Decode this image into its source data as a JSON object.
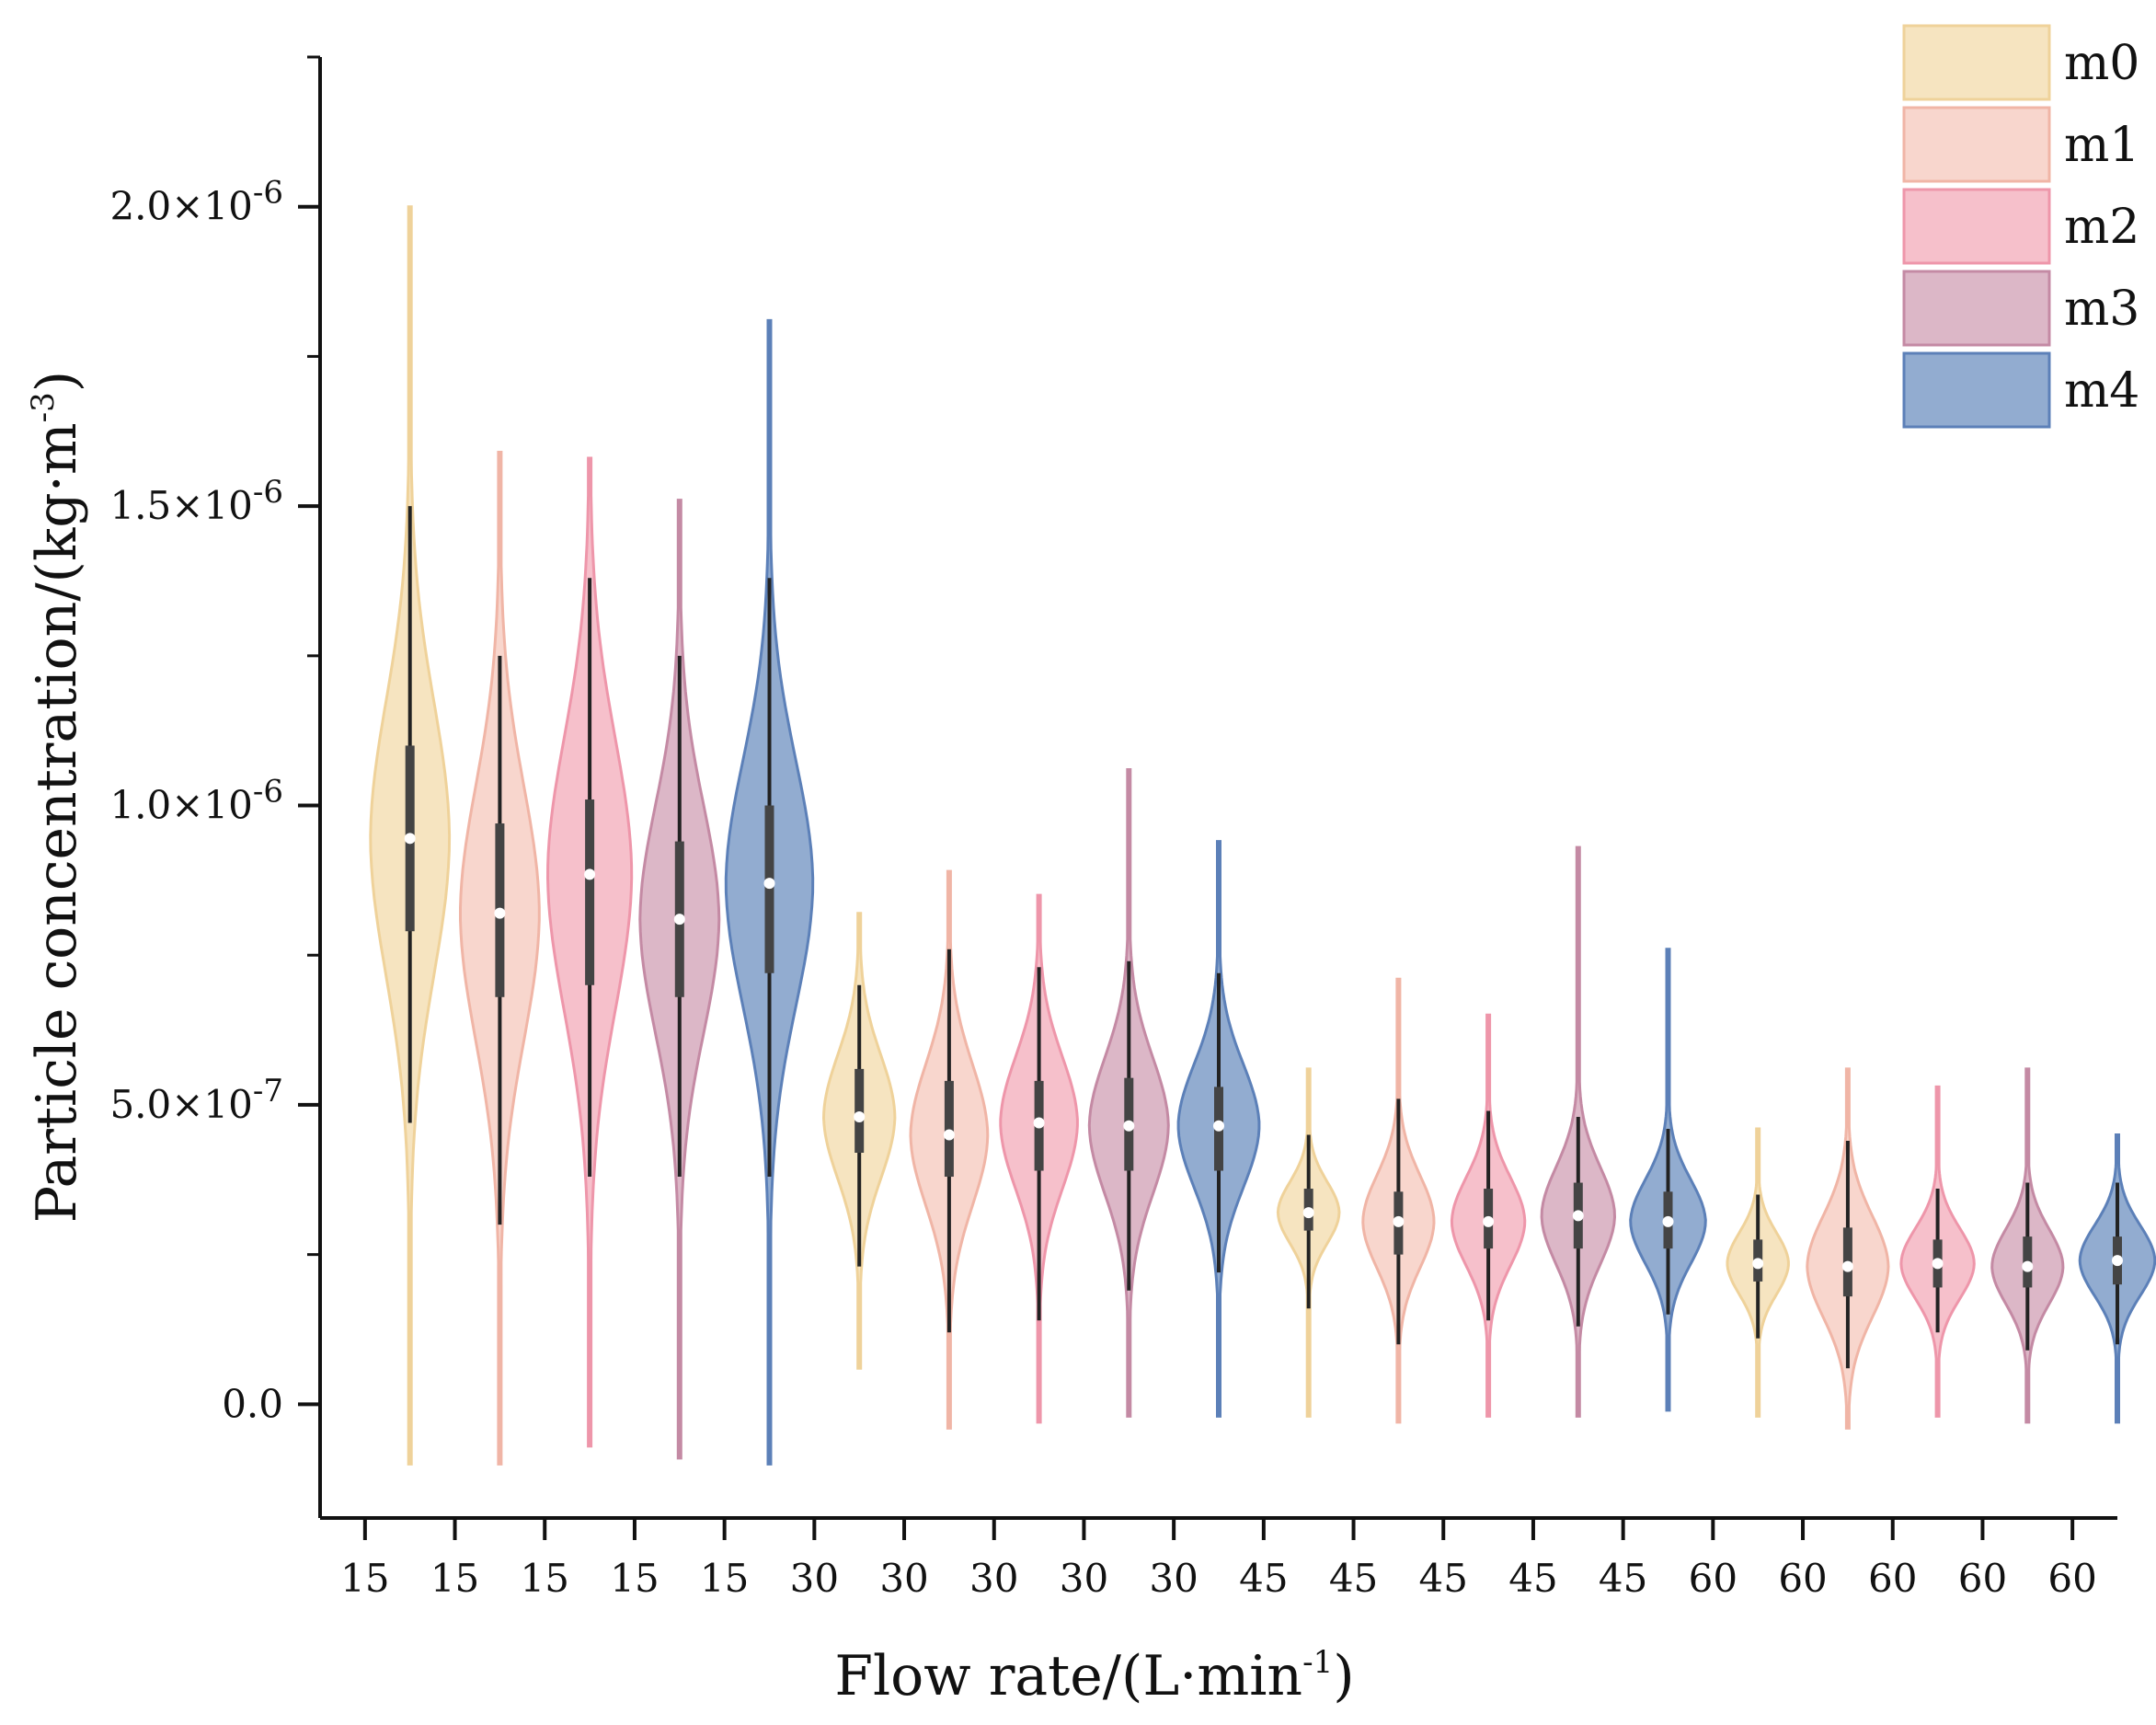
{
  "chart_data": {
    "type": "violin",
    "title": "",
    "xlabel": {
      "text": "Flow rate/(L·min",
      "sup": "-1",
      "suffix": ")"
    },
    "ylabel": {
      "text": "Particle concentration/(kg·m",
      "sup": "-3",
      "suffix": ")"
    },
    "ylim": [
      -1.9e-07,
      2.25e-06
    ],
    "yticks": [
      {
        "value": 0.0,
        "text": "0.0",
        "sup": ""
      },
      {
        "value": 5e-07,
        "text": "5.0×10",
        "sup": "-7"
      },
      {
        "value": 1e-06,
        "text": "1.0×10",
        "sup": "-6"
      },
      {
        "value": 1.5e-06,
        "text": "1.5×10",
        "sup": "-6"
      },
      {
        "value": 2e-06,
        "text": "2.0×10",
        "sup": "-6"
      }
    ],
    "y_minor_step": 2.5e-07,
    "xtick_labels": [
      "15",
      "15",
      "15",
      "15",
      "15",
      "30",
      "30",
      "30",
      "30",
      "30",
      "45",
      "45",
      "45",
      "45",
      "45",
      "60",
      "60",
      "60",
      "60",
      "60"
    ],
    "series": [
      {
        "name": "m0",
        "color": "#f5dfb5",
        "edge": "#efd29a"
      },
      {
        "name": "m1",
        "color": "#f7cfc4",
        "edge": "#f0b5a6"
      },
      {
        "name": "m2",
        "color": "#f5b5c2",
        "edge": "#ee96aa"
      },
      {
        "name": "m3",
        "color": "#d6aabd",
        "edge": "#c48aa4"
      },
      {
        "name": "m4",
        "color": "#7f9dc8",
        "edge": "#5c80b8"
      }
    ],
    "violins": [
      {
        "flow": 15,
        "series": "m0",
        "min": -1e-07,
        "max": 2e-06,
        "q1": 7.9e-07,
        "median": 9.45e-07,
        "q3": 1.1e-06,
        "wlo": 4.7e-07,
        "whi": 1.5e-06,
        "width": 0.8
      },
      {
        "flow": 15,
        "series": "m1",
        "min": -1e-07,
        "max": 1.59e-06,
        "q1": 6.8e-07,
        "median": 8.2e-07,
        "q3": 9.7e-07,
        "wlo": 3e-07,
        "whi": 1.25e-06,
        "width": 0.8
      },
      {
        "flow": 15,
        "series": "m2",
        "min": -7e-08,
        "max": 1.58e-06,
        "q1": 7e-07,
        "median": 8.85e-07,
        "q3": 1.01e-06,
        "wlo": 3.8e-07,
        "whi": 1.38e-06,
        "width": 0.85
      },
      {
        "flow": 15,
        "series": "m3",
        "min": -9e-08,
        "max": 1.51e-06,
        "q1": 6.8e-07,
        "median": 8.1e-07,
        "q3": 9.4e-07,
        "wlo": 3.8e-07,
        "whi": 1.25e-06,
        "width": 0.8
      },
      {
        "flow": 15,
        "series": "m4",
        "min": -1e-07,
        "max": 1.81e-06,
        "q1": 7.2e-07,
        "median": 8.7e-07,
        "q3": 1e-06,
        "wlo": 3.8e-07,
        "whi": 1.38e-06,
        "width": 0.88
      },
      {
        "flow": 30,
        "series": "m0",
        "min": 6e-08,
        "max": 8.2e-07,
        "q1": 4.2e-07,
        "median": 4.8e-07,
        "q3": 5.6e-07,
        "wlo": 2.3e-07,
        "whi": 7e-07,
        "width": 0.72
      },
      {
        "flow": 30,
        "series": "m1",
        "min": -4e-08,
        "max": 8.9e-07,
        "q1": 3.8e-07,
        "median": 4.5e-07,
        "q3": 5.4e-07,
        "wlo": 1.2e-07,
        "whi": 7.6e-07,
        "width": 0.78
      },
      {
        "flow": 30,
        "series": "m2",
        "min": -3e-08,
        "max": 8.5e-07,
        "q1": 3.9e-07,
        "median": 4.7e-07,
        "q3": 5.4e-07,
        "wlo": 1.4e-07,
        "whi": 7.3e-07,
        "width": 0.78
      },
      {
        "flow": 30,
        "series": "m3",
        "min": -2e-08,
        "max": 1.06e-06,
        "q1": 3.9e-07,
        "median": 4.65e-07,
        "q3": 5.45e-07,
        "wlo": 1.9e-07,
        "whi": 7.4e-07,
        "width": 0.8
      },
      {
        "flow": 30,
        "series": "m4",
        "min": -2e-08,
        "max": 9.4e-07,
        "q1": 3.9e-07,
        "median": 4.65e-07,
        "q3": 5.3e-07,
        "wlo": 2.2e-07,
        "whi": 7.2e-07,
        "width": 0.82
      },
      {
        "flow": 45,
        "series": "m0",
        "min": -2e-08,
        "max": 5.6e-07,
        "q1": 2.9e-07,
        "median": 3.2e-07,
        "q3": 3.6e-07,
        "wlo": 1.6e-07,
        "whi": 4.5e-07,
        "width": 0.62
      },
      {
        "flow": 45,
        "series": "m1",
        "min": -3e-08,
        "max": 7.1e-07,
        "q1": 2.5e-07,
        "median": 3.05e-07,
        "q3": 3.55e-07,
        "wlo": 1e-07,
        "whi": 5.1e-07,
        "width": 0.72
      },
      {
        "flow": 45,
        "series": "m2",
        "min": -2e-08,
        "max": 6.5e-07,
        "q1": 2.6e-07,
        "median": 3.05e-07,
        "q3": 3.6e-07,
        "wlo": 1.4e-07,
        "whi": 4.9e-07,
        "width": 0.74
      },
      {
        "flow": 45,
        "series": "m3",
        "min": -2e-08,
        "max": 9.3e-07,
        "q1": 2.6e-07,
        "median": 3.15e-07,
        "q3": 3.7e-07,
        "wlo": 1.3e-07,
        "whi": 4.8e-07,
        "width": 0.74
      },
      {
        "flow": 45,
        "series": "m4",
        "min": -1e-08,
        "max": 7.6e-07,
        "q1": 2.6e-07,
        "median": 3.05e-07,
        "q3": 3.55e-07,
        "wlo": 1.5e-07,
        "whi": 4.6e-07,
        "width": 0.76
      },
      {
        "flow": 60,
        "series": "m0",
        "min": -2e-08,
        "max": 4.6e-07,
        "q1": 2.05e-07,
        "median": 2.35e-07,
        "q3": 2.75e-07,
        "wlo": 1.1e-07,
        "whi": 3.5e-07,
        "width": 0.62
      },
      {
        "flow": 60,
        "series": "m1",
        "min": -4e-08,
        "max": 5.6e-07,
        "q1": 1.8e-07,
        "median": 2.3e-07,
        "q3": 2.95e-07,
        "wlo": 6e-08,
        "whi": 4.4e-07,
        "width": 0.82
      },
      {
        "flow": 60,
        "series": "m2",
        "min": -2e-08,
        "max": 5.3e-07,
        "q1": 1.95e-07,
        "median": 2.35e-07,
        "q3": 2.75e-07,
        "wlo": 1.2e-07,
        "whi": 3.6e-07,
        "width": 0.74
      },
      {
        "flow": 60,
        "series": "m3",
        "min": -3e-08,
        "max": 5.6e-07,
        "q1": 1.95e-07,
        "median": 2.3e-07,
        "q3": 2.8e-07,
        "wlo": 9e-08,
        "whi": 3.7e-07,
        "width": 0.72
      },
      {
        "flow": 60,
        "series": "m4",
        "min": -3e-08,
        "max": 4.5e-07,
        "q1": 2e-07,
        "median": 2.4e-07,
        "q3": 2.8e-07,
        "wlo": 1e-07,
        "whi": 3.7e-07,
        "width": 0.76
      }
    ],
    "legend": {
      "position": "top-right",
      "entries": [
        "m0",
        "m1",
        "m2",
        "m3",
        "m4"
      ]
    }
  }
}
